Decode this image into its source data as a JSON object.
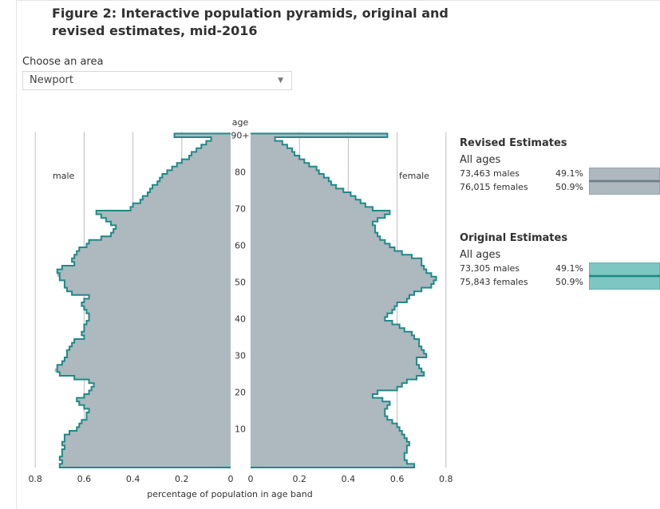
{
  "title": "Figure 2: Interactive population pyramids, original and revised estimates, mid-2016",
  "area_select": {
    "label": "Choose an area",
    "value": "Newport"
  },
  "colors": {
    "revised_fill": "#adb8bf",
    "original_line": "#1e8a86",
    "grid": "#bdbdbd"
  },
  "legend": {
    "revised": {
      "title": "Revised Estimates",
      "subtitle": "All ages",
      "males": "73,463 males",
      "males_pct": "49.1%",
      "females": "76,015 females",
      "females_pct": "50.9%"
    },
    "original": {
      "title": "Original Estimates",
      "subtitle": "All ages",
      "males": "73,305 males",
      "males_pct": "49.1%",
      "females": "75,843 females",
      "females_pct": "50.9%"
    }
  },
  "chart_data": {
    "type": "population-pyramid",
    "xlabel": "percentage of population in age band",
    "age_axis_label": "age",
    "side_labels": {
      "male": "male",
      "female": "female"
    },
    "age_ticks": [
      "10",
      "20",
      "30",
      "40",
      "50",
      "60",
      "70",
      "80",
      "90+"
    ],
    "male_ticks": [
      "0.8",
      "0.6",
      "0.4",
      "0.2",
      "0"
    ],
    "female_ticks": [
      "0",
      "0.2",
      "0.4",
      "0.6",
      "0.8"
    ],
    "xlim": [
      0,
      0.8
    ],
    "ages": [
      "0",
      "1",
      "2",
      "3",
      "4",
      "5",
      "6",
      "7",
      "8",
      "9",
      "10",
      "11",
      "12",
      "13",
      "14",
      "15",
      "16",
      "17",
      "18",
      "19",
      "20",
      "21",
      "22",
      "23",
      "24",
      "25",
      "26",
      "27",
      "28",
      "29",
      "30",
      "31",
      "32",
      "33",
      "34",
      "35",
      "36",
      "37",
      "38",
      "39",
      "40",
      "41",
      "42",
      "43",
      "44",
      "45",
      "46",
      "47",
      "48",
      "49",
      "50",
      "51",
      "52",
      "53",
      "54",
      "55",
      "56",
      "57",
      "58",
      "59",
      "60",
      "61",
      "62",
      "63",
      "64",
      "65",
      "66",
      "67",
      "68",
      "69",
      "70",
      "71",
      "72",
      "73",
      "74",
      "75",
      "76",
      "77",
      "78",
      "79",
      "80",
      "81",
      "82",
      "83",
      "84",
      "85",
      "86",
      "87",
      "88",
      "89",
      "90+"
    ],
    "series": [
      {
        "name": "Revised Estimates",
        "male": [
          0.7,
          0.69,
          0.7,
          0.69,
          0.69,
          0.68,
          0.69,
          0.68,
          0.68,
          0.66,
          0.63,
          0.62,
          0.61,
          0.59,
          0.59,
          0.58,
          0.6,
          0.62,
          0.63,
          0.6,
          0.58,
          0.57,
          0.56,
          0.58,
          0.64,
          0.7,
          0.72,
          0.71,
          0.69,
          0.68,
          0.67,
          0.67,
          0.66,
          0.65,
          0.64,
          0.6,
          0.61,
          0.6,
          0.6,
          0.59,
          0.58,
          0.58,
          0.59,
          0.6,
          0.61,
          0.6,
          0.58,
          0.65,
          0.67,
          0.68,
          0.68,
          0.7,
          0.71,
          0.71,
          0.69,
          0.64,
          0.65,
          0.64,
          0.63,
          0.62,
          0.59,
          0.58,
          0.53,
          0.49,
          0.48,
          0.47,
          0.49,
          0.51,
          0.53,
          0.55,
          0.41,
          0.4,
          0.37,
          0.36,
          0.34,
          0.33,
          0.32,
          0.3,
          0.29,
          0.28,
          0.26,
          0.24,
          0.22,
          0.2,
          0.17,
          0.16,
          0.14,
          0.12,
          0.1,
          0.08,
          0.23
        ],
        "female": [
          0.67,
          0.64,
          0.63,
          0.63,
          0.64,
          0.64,
          0.65,
          0.64,
          0.63,
          0.62,
          0.61,
          0.6,
          0.58,
          0.56,
          0.55,
          0.55,
          0.56,
          0.57,
          0.54,
          0.5,
          0.52,
          0.6,
          0.62,
          0.64,
          0.68,
          0.71,
          0.7,
          0.69,
          0.68,
          0.68,
          0.72,
          0.71,
          0.7,
          0.69,
          0.69,
          0.67,
          0.66,
          0.63,
          0.61,
          0.58,
          0.55,
          0.56,
          0.58,
          0.59,
          0.6,
          0.64,
          0.65,
          0.67,
          0.7,
          0.74,
          0.75,
          0.76,
          0.74,
          0.72,
          0.71,
          0.7,
          0.7,
          0.66,
          0.62,
          0.59,
          0.57,
          0.55,
          0.53,
          0.52,
          0.51,
          0.51,
          0.5,
          0.52,
          0.55,
          0.57,
          0.5,
          0.47,
          0.45,
          0.43,
          0.41,
          0.38,
          0.35,
          0.33,
          0.32,
          0.3,
          0.28,
          0.27,
          0.24,
          0.22,
          0.2,
          0.18,
          0.17,
          0.15,
          0.13,
          0.1,
          0.56
        ]
      },
      {
        "name": "Original Estimates",
        "male": [
          0.7,
          0.69,
          0.7,
          0.69,
          0.69,
          0.68,
          0.69,
          0.68,
          0.68,
          0.66,
          0.63,
          0.62,
          0.61,
          0.59,
          0.59,
          0.58,
          0.6,
          0.62,
          0.63,
          0.6,
          0.58,
          0.57,
          0.56,
          0.58,
          0.64,
          0.7,
          0.71,
          0.71,
          0.69,
          0.68,
          0.67,
          0.67,
          0.66,
          0.65,
          0.64,
          0.6,
          0.61,
          0.6,
          0.6,
          0.59,
          0.58,
          0.58,
          0.59,
          0.6,
          0.61,
          0.6,
          0.58,
          0.65,
          0.67,
          0.68,
          0.68,
          0.7,
          0.7,
          0.71,
          0.69,
          0.64,
          0.65,
          0.64,
          0.63,
          0.62,
          0.59,
          0.58,
          0.53,
          0.49,
          0.48,
          0.47,
          0.49,
          0.51,
          0.53,
          0.55,
          0.41,
          0.4,
          0.37,
          0.36,
          0.34,
          0.33,
          0.32,
          0.3,
          0.29,
          0.28,
          0.26,
          0.24,
          0.22,
          0.2,
          0.17,
          0.16,
          0.14,
          0.12,
          0.1,
          0.08,
          0.23
        ],
        "female": [
          0.67,
          0.64,
          0.63,
          0.63,
          0.64,
          0.64,
          0.65,
          0.64,
          0.63,
          0.62,
          0.61,
          0.6,
          0.58,
          0.56,
          0.55,
          0.55,
          0.56,
          0.57,
          0.54,
          0.5,
          0.52,
          0.6,
          0.62,
          0.64,
          0.68,
          0.71,
          0.7,
          0.69,
          0.68,
          0.68,
          0.72,
          0.71,
          0.7,
          0.69,
          0.69,
          0.67,
          0.66,
          0.63,
          0.61,
          0.58,
          0.55,
          0.56,
          0.58,
          0.59,
          0.6,
          0.64,
          0.65,
          0.67,
          0.7,
          0.74,
          0.75,
          0.76,
          0.74,
          0.72,
          0.71,
          0.7,
          0.7,
          0.66,
          0.62,
          0.59,
          0.57,
          0.55,
          0.53,
          0.52,
          0.51,
          0.51,
          0.5,
          0.52,
          0.55,
          0.57,
          0.5,
          0.47,
          0.45,
          0.43,
          0.41,
          0.38,
          0.35,
          0.33,
          0.32,
          0.3,
          0.28,
          0.27,
          0.24,
          0.22,
          0.2,
          0.18,
          0.17,
          0.15,
          0.13,
          0.1,
          0.56
        ]
      }
    ]
  }
}
